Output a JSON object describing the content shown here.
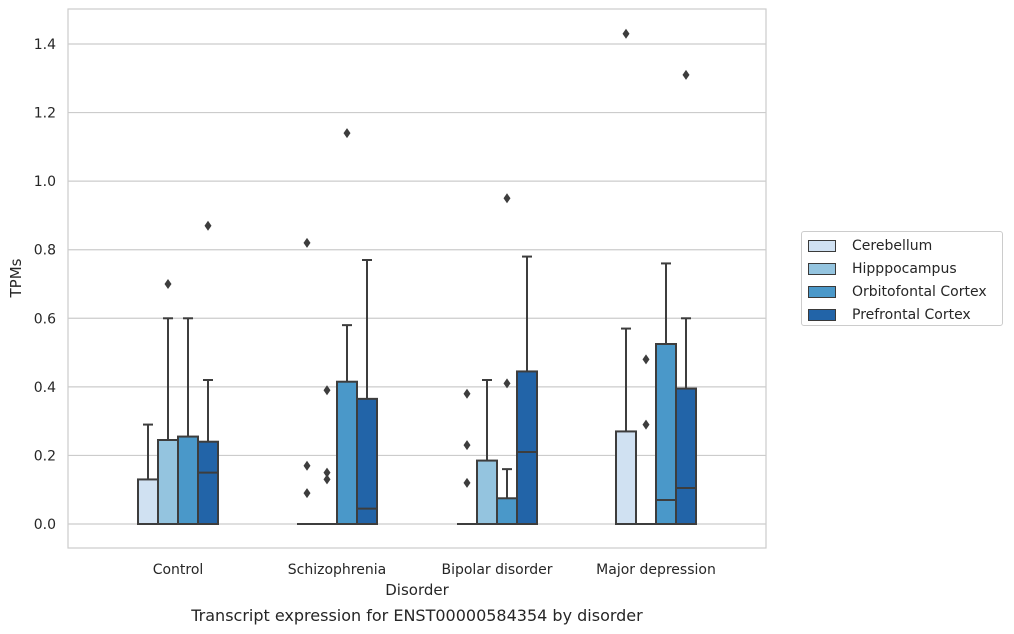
{
  "chart_data": {
    "type": "box",
    "xlabel": "Disorder",
    "ylabel": "TPMs",
    "ylim": [
      -0.07,
      1.5
    ],
    "yticks": [
      "0.0",
      "0.2",
      "0.4",
      "0.6",
      "0.8",
      "1.0",
      "1.2",
      "1.4"
    ],
    "grid": "horizontal",
    "legend_placement": "right",
    "categories": [
      "Control",
      "Schizophrenia",
      "Bipolar disorder",
      "Major depression"
    ],
    "series": [
      {
        "name": "Cerebellum",
        "color": "#d0e1f2",
        "boxes": [
          {
            "q1": 0.0,
            "median": 0.0,
            "q3": 0.13,
            "whisker_low": 0.0,
            "whisker_high": 0.29,
            "outliers": []
          },
          {
            "q1": 0.0,
            "median": 0.0,
            "q3": 0.0,
            "whisker_low": 0.0,
            "whisker_high": 0.0,
            "outliers": [
              0.82,
              0.17,
              0.09
            ]
          },
          {
            "q1": 0.0,
            "median": 0.0,
            "q3": 0.0,
            "whisker_low": 0.0,
            "whisker_high": 0.0,
            "outliers": [
              0.38,
              0.23,
              0.12
            ]
          },
          {
            "q1": 0.0,
            "median": 0.0,
            "q3": 0.27,
            "whisker_low": 0.0,
            "whisker_high": 0.57,
            "outliers": [
              1.43
            ]
          }
        ]
      },
      {
        "name": "Hipppocampus",
        "color": "#94c4df",
        "boxes": [
          {
            "q1": 0.0,
            "median": 0.0,
            "q3": 0.245,
            "whisker_low": 0.0,
            "whisker_high": 0.6,
            "outliers": [
              0.7
            ]
          },
          {
            "q1": 0.0,
            "median": 0.0,
            "q3": 0.0,
            "whisker_low": 0.0,
            "whisker_high": 0.0,
            "outliers": [
              0.39,
              0.15,
              0.13
            ]
          },
          {
            "q1": 0.0,
            "median": 0.0,
            "q3": 0.185,
            "whisker_low": 0.0,
            "whisker_high": 0.42,
            "outliers": []
          },
          {
            "q1": 0.0,
            "median": 0.0,
            "q3": 0.0,
            "whisker_low": 0.0,
            "whisker_high": 0.0,
            "outliers": [
              0.48,
              0.29
            ]
          }
        ]
      },
      {
        "name": "Orbitofontal Cortex",
        "color": "#4a98c9",
        "boxes": [
          {
            "q1": 0.0,
            "median": 0.0,
            "q3": 0.255,
            "whisker_low": 0.0,
            "whisker_high": 0.6,
            "outliers": []
          },
          {
            "q1": 0.0,
            "median": 0.0,
            "q3": 0.415,
            "whisker_low": 0.0,
            "whisker_high": 0.58,
            "outliers": [
              1.14
            ]
          },
          {
            "q1": 0.0,
            "median": 0.0,
            "q3": 0.075,
            "whisker_low": 0.0,
            "whisker_high": 0.16,
            "outliers": [
              0.95,
              0.41
            ]
          },
          {
            "q1": 0.0,
            "median": 0.07,
            "q3": 0.525,
            "whisker_low": 0.0,
            "whisker_high": 0.76,
            "outliers": []
          }
        ]
      },
      {
        "name": "Prefrontal Cortex",
        "color": "#2264a8",
        "boxes": [
          {
            "q1": 0.0,
            "median": 0.15,
            "q3": 0.24,
            "whisker_low": 0.0,
            "whisker_high": 0.42,
            "outliers": [
              0.87
            ]
          },
          {
            "q1": 0.0,
            "median": 0.045,
            "q3": 0.365,
            "whisker_low": 0.0,
            "whisker_high": 0.77,
            "outliers": []
          },
          {
            "q1": 0.0,
            "median": 0.21,
            "q3": 0.445,
            "whisker_low": 0.0,
            "whisker_high": 0.78,
            "outliers": []
          },
          {
            "q1": 0.0,
            "median": 0.105,
            "q3": 0.395,
            "whisker_low": 0.0,
            "whisker_high": 0.6,
            "outliers": [
              1.31
            ]
          }
        ]
      }
    ]
  },
  "caption": "Transcript expression for ENST00000584354 by disorder"
}
